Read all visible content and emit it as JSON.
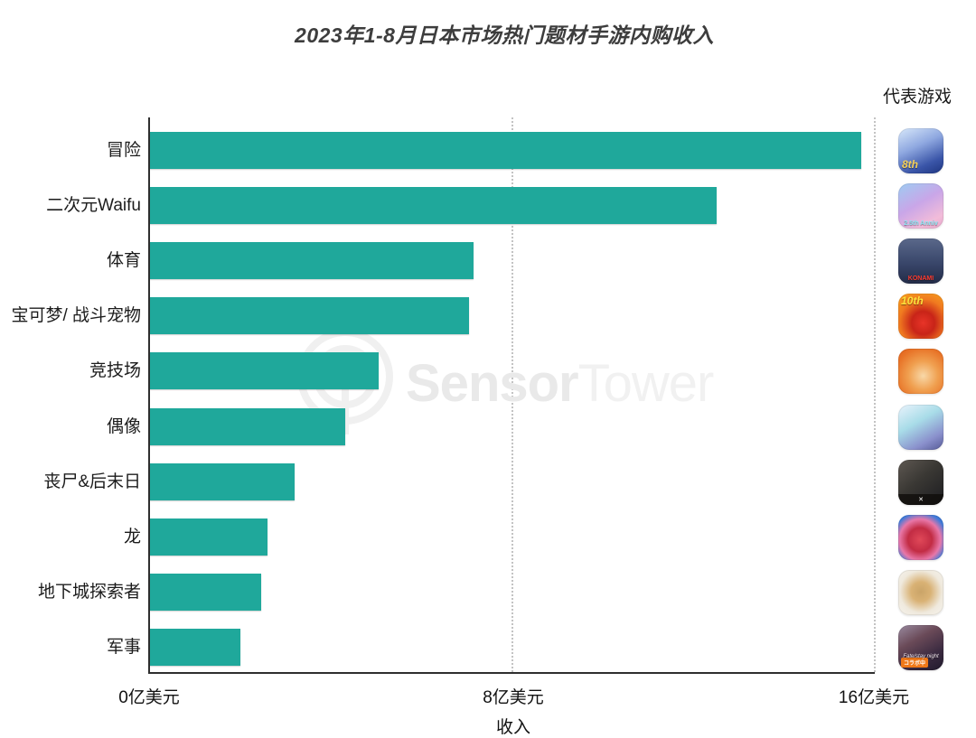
{
  "legend": {
    "header": "代表游戏"
  },
  "watermark": {
    "bold": "Sensor",
    "light": "Tower"
  },
  "chart_data": {
    "type": "bar",
    "orientation": "horizontal",
    "title": "2023年1-8月日本市场热门题材手游内购收入",
    "xlabel": "收入",
    "unit": "亿美元",
    "xlim": [
      0,
      16
    ],
    "x_ticks": [
      "0亿美元",
      "8亿美元",
      "16亿美元"
    ],
    "x_tick_values": [
      0,
      8,
      16
    ],
    "grid": "dotted vertical gridlines at 8 and 16",
    "legend_position": "right column of app icons, header top-right",
    "bar_color": "#1FA89B",
    "categories": [
      "冒险",
      "二次元Waifu",
      "体育",
      "宝可梦/ 战斗宠物",
      "竞技场",
      "偶像",
      "丧尸&后末日",
      "龙",
      "地下城探索者",
      "军事"
    ],
    "values": [
      15.7,
      12.5,
      7.15,
      7.05,
      5.05,
      4.3,
      3.2,
      2.6,
      2.45,
      2.0
    ],
    "representative_games": [
      {
        "name": "adventure-rep-game",
        "desc": "blue and gold anime knight app icon with 8th anniversary mark",
        "bg": "linear-gradient(155deg,#d8e8fa 0%,#8fa8e0 40%,#3a55a8 75%,#1e3580 100%)",
        "badges": [
          {
            "text": "8th",
            "pos": "bl",
            "color": "#f4cf5a"
          }
        ]
      },
      {
        "name": "anime-waifu-rep-game",
        "desc": "pink and purple anime girl app icon with 2.5th anniversary mark",
        "bg": "linear-gradient(150deg,#9ecbf2 0%,#c9a6e8 45%,#f2bcd9 80%,#e8a8cc 100%)",
        "badges": [
          {
            "text": "2.5th Anniv",
            "pos": "bc",
            "color": "#8ae8f5"
          }
        ]
      },
      {
        "name": "sports-rep-game",
        "desc": "baseball players app icon with red KONAMI wordmark",
        "bg": "linear-gradient(180deg,#5a688a 0%,#39466a 55%,#232c48 100%)",
        "badges": [
          {
            "text": "KONAMI",
            "pos": "bc",
            "color": "#ff3b2e"
          }
        ]
      },
      {
        "name": "pokemon-battle-pets-rep-game",
        "desc": "red round monster on orange app icon with 10th mark",
        "bg": "radial-gradient(circle at 55% 65%,#e83428 0%,#c82418 30%,#f07a20 62%,#f8a81e 100%)",
        "badges": [
          {
            "text": "10th",
            "pos": "tl",
            "color": "#ffe23c"
          }
        ]
      },
      {
        "name": "arena-rep-game",
        "desc": "orange app icon with straw-hat pirate characters",
        "bg": "radial-gradient(circle at 55% 60%,#f8d8a8 0%,#f0a050 40%,#e87428 75%,#e05e1a 100%)",
        "badges": []
      },
      {
        "name": "idol-rep-game",
        "desc": "light blue app icon with teal and dark haired anime characters",
        "bg": "linear-gradient(150deg,#eaf3fc 0%,#a8dce8 40%,#8a90cc 75%,#555a96 100%)",
        "badges": []
      },
      {
        "name": "zombie-post-apocalypse-rep-game",
        "desc": "dark app icon with two survivors and crossover logo band",
        "bg": "linear-gradient(140deg,#5e5852 0%,#3a3834 45%,#1c1c20 100%)",
        "badges": [
          {
            "text": "✕",
            "pos": "band",
            "color": "#ffffff"
          }
        ]
      },
      {
        "name": "dragon-rep-game",
        "desc": "red dragon on blue app icon",
        "bg": "radial-gradient(circle at 48% 55%,#e04858 0%,#c22c44 35%,#e877a8 60%,#3f7bd9 80%,#2f62c0 100%)",
        "badges": []
      },
      {
        "name": "dungeon-crawler-rep-game",
        "desc": "white app icon with laughing tan character",
        "bg": "radial-gradient(circle at 50% 48%,#caa468 0%,#d9b275 30%,#efe9dd 65%,#f7f4ee 100%)",
        "badges": []
      },
      {
        "name": "military-rep-game",
        "desc": "dark app icon with silver-haired girl, collab badge and Fate logo",
        "bg": "linear-gradient(150deg,#9a8ba0 0%,#6a4a58 35%,#3a2a40 70%,#201a2c 100%)",
        "badges": [
          {
            "text": "コラボ中",
            "pos": "chip",
            "color": "#ffffff",
            "bg": "#f07818"
          },
          {
            "text": "Fate/stay night",
            "pos": "b2",
            "color": "#efe6ea"
          }
        ]
      }
    ]
  }
}
